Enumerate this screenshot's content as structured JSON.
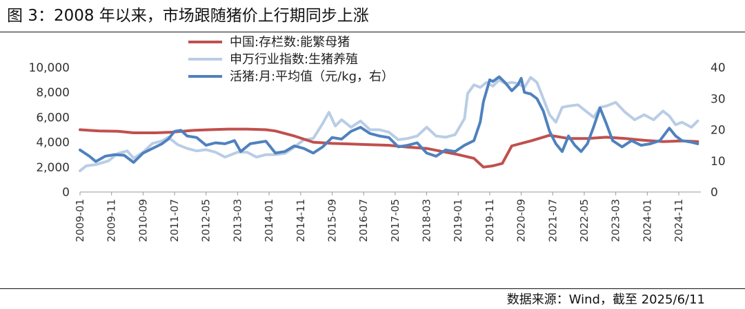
{
  "header": {
    "title": "图 3：2008 年以来，市场跟随猪价上行期同步上涨"
  },
  "footer": {
    "source": "数据来源：Wind，截至 2025/6/11"
  },
  "colors": {
    "sow": "#c0504d",
    "index": "#b9cde5",
    "hog": "#4f81bd",
    "axis": "#999999",
    "text": "#333333"
  },
  "chart_data": {
    "type": "line",
    "left_axis": {
      "ylim": [
        0,
        10000
      ],
      "ticks": [
        "0",
        "2,000",
        "4,000",
        "6,000",
        "8,000",
        "10,000"
      ]
    },
    "right_axis": {
      "ylim": [
        0,
        40
      ],
      "ticks": [
        "0",
        "10",
        "20",
        "30",
        "40"
      ]
    },
    "x_tick_labels": [
      "2009-01",
      "2009-11",
      "2010-09",
      "2011-07",
      "2012-05",
      "2013-03",
      "2014-01",
      "2014-11",
      "2015-09",
      "2016-07",
      "2017-05",
      "2018-03",
      "2019-01",
      "2019-11",
      "2020-09",
      "2021-07",
      "2022-05",
      "2023-03",
      "2024-01",
      "2024-11"
    ],
    "x_range": [
      "2009-01",
      "2025-06"
    ],
    "grid": false,
    "legend_position": "top-center",
    "series": [
      {
        "name": "中国:存栏数:能繁母猪",
        "axis": "left",
        "color": "#c0504d",
        "points": [
          [
            "2009-01",
            5000
          ],
          [
            "2009-07",
            4900
          ],
          [
            "2010-01",
            4880
          ],
          [
            "2010-06",
            4750
          ],
          [
            "2011-01",
            4750
          ],
          [
            "2011-06",
            4800
          ],
          [
            "2012-01",
            4950
          ],
          [
            "2012-06",
            5000
          ],
          [
            "2012-12",
            5050
          ],
          [
            "2013-06",
            5050
          ],
          [
            "2013-12",
            5000
          ],
          [
            "2014-03",
            4900
          ],
          [
            "2014-09",
            4500
          ],
          [
            "2015-03",
            4000
          ],
          [
            "2015-09",
            3900
          ],
          [
            "2016-03",
            3850
          ],
          [
            "2016-09",
            3800
          ],
          [
            "2017-03",
            3750
          ],
          [
            "2017-09",
            3600
          ],
          [
            "2018-03",
            3500
          ],
          [
            "2018-09",
            3200
          ],
          [
            "2019-01",
            3000
          ],
          [
            "2019-06",
            2700
          ],
          [
            "2019-09",
            2000
          ],
          [
            "2019-12",
            2100
          ],
          [
            "2020-03",
            2300
          ],
          [
            "2020-06",
            3700
          ],
          [
            "2020-12",
            4100
          ],
          [
            "2021-06",
            4550
          ],
          [
            "2021-12",
            4300
          ],
          [
            "2022-06",
            4300
          ],
          [
            "2022-12",
            4400
          ],
          [
            "2023-06",
            4300
          ],
          [
            "2023-12",
            4150
          ],
          [
            "2024-06",
            4050
          ],
          [
            "2024-12",
            4100
          ],
          [
            "2025-05",
            4050
          ]
        ]
      },
      {
        "name": "申万行业指数:生猪养殖",
        "axis": "left",
        "color": "#b9cde5",
        "points": [
          [
            "2009-01",
            1700
          ],
          [
            "2009-03",
            2100
          ],
          [
            "2009-06",
            2200
          ],
          [
            "2009-10",
            2500
          ],
          [
            "2010-01",
            3100
          ],
          [
            "2010-04",
            3300
          ],
          [
            "2010-06",
            2700
          ],
          [
            "2010-09",
            3200
          ],
          [
            "2010-12",
            3900
          ],
          [
            "2011-03",
            4100
          ],
          [
            "2011-05",
            4400
          ],
          [
            "2011-08",
            3800
          ],
          [
            "2011-11",
            3500
          ],
          [
            "2012-02",
            3300
          ],
          [
            "2012-05",
            3400
          ],
          [
            "2012-08",
            3200
          ],
          [
            "2012-11",
            2800
          ],
          [
            "2013-03",
            3200
          ],
          [
            "2013-06",
            3200
          ],
          [
            "2013-09",
            2800
          ],
          [
            "2013-12",
            3000
          ],
          [
            "2014-03",
            3000
          ],
          [
            "2014-06",
            3100
          ],
          [
            "2014-09",
            3600
          ],
          [
            "2014-12",
            4200
          ],
          [
            "2015-03",
            4300
          ],
          [
            "2015-06",
            5500
          ],
          [
            "2015-08",
            6400
          ],
          [
            "2015-10",
            5300
          ],
          [
            "2015-12",
            5800
          ],
          [
            "2016-03",
            5200
          ],
          [
            "2016-06",
            5700
          ],
          [
            "2016-09",
            5000
          ],
          [
            "2016-12",
            5000
          ],
          [
            "2017-03",
            4800
          ],
          [
            "2017-06",
            4200
          ],
          [
            "2017-09",
            4300
          ],
          [
            "2017-12",
            4500
          ],
          [
            "2018-03",
            5200
          ],
          [
            "2018-06",
            4500
          ],
          [
            "2018-09",
            4400
          ],
          [
            "2018-12",
            4600
          ],
          [
            "2019-03",
            5900
          ],
          [
            "2019-04",
            7900
          ],
          [
            "2019-06",
            8600
          ],
          [
            "2019-08",
            8400
          ],
          [
            "2019-10",
            8800
          ],
          [
            "2019-12",
            8500
          ],
          [
            "2020-02",
            9000
          ],
          [
            "2020-04",
            8700
          ],
          [
            "2020-06",
            8800
          ],
          [
            "2020-08",
            8700
          ],
          [
            "2020-10",
            8400
          ],
          [
            "2020-12",
            9200
          ],
          [
            "2021-02",
            8800
          ],
          [
            "2021-04",
            7500
          ],
          [
            "2021-06",
            6200
          ],
          [
            "2021-08",
            5600
          ],
          [
            "2021-10",
            6800
          ],
          [
            "2021-12",
            6900
          ],
          [
            "2022-03",
            7000
          ],
          [
            "2022-06",
            6400
          ],
          [
            "2022-08",
            6000
          ],
          [
            "2022-10",
            6800
          ],
          [
            "2022-12",
            6900
          ],
          [
            "2023-03",
            7200
          ],
          [
            "2023-06",
            6400
          ],
          [
            "2023-09",
            5800
          ],
          [
            "2023-12",
            6200
          ],
          [
            "2024-03",
            5800
          ],
          [
            "2024-06",
            6500
          ],
          [
            "2024-08",
            6100
          ],
          [
            "2024-10",
            5400
          ],
          [
            "2024-12",
            5600
          ],
          [
            "2025-03",
            5200
          ],
          [
            "2025-05",
            5700
          ]
        ]
      },
      {
        "name": "活猪:月:平均值（元/kg，右）",
        "axis": "right",
        "color": "#4f81bd",
        "points": [
          [
            "2009-01",
            13.5
          ],
          [
            "2009-04",
            11.5
          ],
          [
            "2009-06",
            9.8
          ],
          [
            "2009-09",
            11.5
          ],
          [
            "2009-12",
            12.0
          ],
          [
            "2010-03",
            11.8
          ],
          [
            "2010-06",
            9.5
          ],
          [
            "2010-09",
            12.5
          ],
          [
            "2010-12",
            14.0
          ],
          [
            "2011-03",
            15.5
          ],
          [
            "2011-05",
            17.0
          ],
          [
            "2011-07",
            19.5
          ],
          [
            "2011-09",
            19.8
          ],
          [
            "2011-11",
            18.0
          ],
          [
            "2012-02",
            17.5
          ],
          [
            "2012-05",
            15.0
          ],
          [
            "2012-08",
            15.8
          ],
          [
            "2012-11",
            15.5
          ],
          [
            "2013-02",
            16.5
          ],
          [
            "2013-04",
            13.0
          ],
          [
            "2013-07",
            15.5
          ],
          [
            "2013-10",
            16.0
          ],
          [
            "2013-12",
            16.3
          ],
          [
            "2014-03",
            12.5
          ],
          [
            "2014-06",
            13.0
          ],
          [
            "2014-09",
            14.8
          ],
          [
            "2014-12",
            14.0
          ],
          [
            "2015-03",
            12.5
          ],
          [
            "2015-06",
            14.5
          ],
          [
            "2015-09",
            17.5
          ],
          [
            "2015-12",
            17.0
          ],
          [
            "2016-03",
            19.5
          ],
          [
            "2016-06",
            20.8
          ],
          [
            "2016-09",
            18.8
          ],
          [
            "2016-12",
            18.0
          ],
          [
            "2017-03",
            17.5
          ],
          [
            "2017-06",
            14.5
          ],
          [
            "2017-09",
            15.0
          ],
          [
            "2017-12",
            15.8
          ],
          [
            "2018-03",
            12.5
          ],
          [
            "2018-06",
            11.5
          ],
          [
            "2018-09",
            13.5
          ],
          [
            "2018-12",
            13.0
          ],
          [
            "2019-03",
            15.0
          ],
          [
            "2019-06",
            16.5
          ],
          [
            "2019-08",
            22.5
          ],
          [
            "2019-09",
            29.0
          ],
          [
            "2019-11",
            36.0
          ],
          [
            "2019-12",
            35.5
          ],
          [
            "2020-02",
            37.0
          ],
          [
            "2020-04",
            35.0
          ],
          [
            "2020-06",
            32.5
          ],
          [
            "2020-08",
            34.5
          ],
          [
            "2020-09",
            36.5
          ],
          [
            "2020-10",
            32.0
          ],
          [
            "2020-12",
            31.5
          ],
          [
            "2021-02",
            30.0
          ],
          [
            "2021-04",
            26.0
          ],
          [
            "2021-06",
            19.5
          ],
          [
            "2021-08",
            15.5
          ],
          [
            "2021-10",
            13.0
          ],
          [
            "2021-12",
            18.0
          ],
          [
            "2022-02",
            15.0
          ],
          [
            "2022-04",
            13.0
          ],
          [
            "2022-06",
            15.5
          ],
          [
            "2022-08",
            21.0
          ],
          [
            "2022-10",
            27.0
          ],
          [
            "2022-12",
            22.0
          ],
          [
            "2023-02",
            16.5
          ],
          [
            "2023-05",
            14.5
          ],
          [
            "2023-08",
            16.5
          ],
          [
            "2023-11",
            15.0
          ],
          [
            "2024-02",
            15.5
          ],
          [
            "2024-05",
            16.5
          ],
          [
            "2024-08",
            20.5
          ],
          [
            "2024-10",
            18.0
          ],
          [
            "2024-12",
            16.5
          ],
          [
            "2025-03",
            16.0
          ],
          [
            "2025-05",
            15.5
          ]
        ]
      }
    ]
  }
}
